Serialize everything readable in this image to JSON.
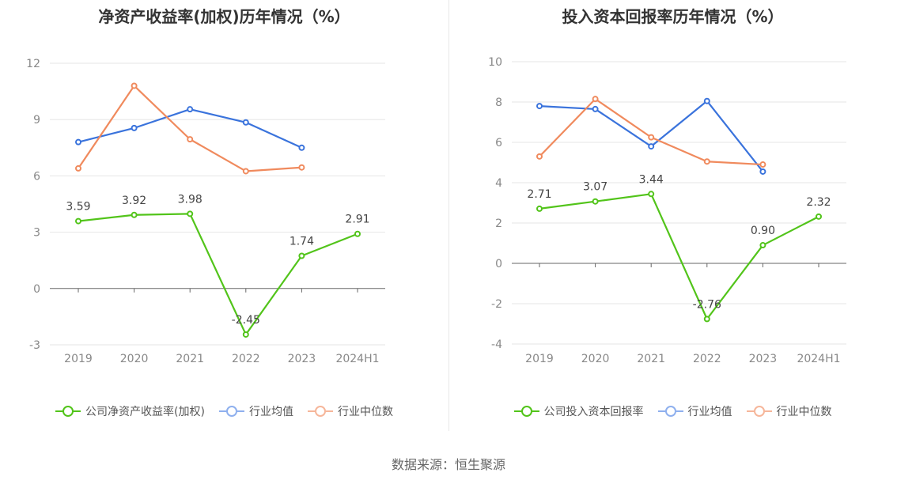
{
  "source": "数据来源：恒生聚源",
  "chart_data": [
    {
      "type": "line",
      "title": "净资产收益率(加权)历年情况（%）",
      "categories": [
        "2019",
        "2020",
        "2021",
        "2022",
        "2023",
        "2024H1"
      ],
      "ylim": [
        -3,
        12
      ],
      "yticks": [
        -3,
        0,
        3,
        6,
        9,
        12
      ],
      "grid": true,
      "legend_position": "bottom",
      "series": [
        {
          "name": "公司净资产收益率(加权)",
          "color": "#52c41a",
          "values": [
            3.59,
            3.92,
            3.98,
            -2.45,
            1.74,
            2.91
          ],
          "labels": [
            "3.59",
            "3.92",
            "3.98",
            "-2.45",
            "1.74",
            "2.91"
          ]
        },
        {
          "name": "行业均值",
          "color": "#3a73dc",
          "values": [
            7.8,
            8.55,
            9.55,
            8.85,
            7.5,
            null
          ]
        },
        {
          "name": "行业中位数",
          "color": "#f08a5d",
          "values": [
            6.4,
            10.8,
            7.95,
            6.25,
            6.45,
            null
          ]
        }
      ]
    },
    {
      "type": "line",
      "title": "投入资本回报率历年情况（%）",
      "categories": [
        "2019",
        "2020",
        "2021",
        "2022",
        "2023",
        "2024H1"
      ],
      "ylim": [
        -4,
        10
      ],
      "yticks": [
        -4,
        -2,
        0,
        2,
        4,
        6,
        8,
        10
      ],
      "grid": true,
      "legend_position": "bottom",
      "series": [
        {
          "name": "公司投入资本回报率",
          "color": "#52c41a",
          "values": [
            2.71,
            3.07,
            3.44,
            -2.76,
            0.9,
            2.32
          ],
          "labels": [
            "2.71",
            "3.07",
            "3.44",
            "-2.76",
            "0.90",
            "2.32"
          ]
        },
        {
          "name": "行业均值",
          "color": "#3a73dc",
          "values": [
            7.8,
            7.65,
            5.8,
            8.05,
            4.55,
            null
          ]
        },
        {
          "name": "行业中位数",
          "color": "#f08a5d",
          "values": [
            5.3,
            8.15,
            6.25,
            5.05,
            4.9,
            null
          ]
        }
      ]
    }
  ]
}
